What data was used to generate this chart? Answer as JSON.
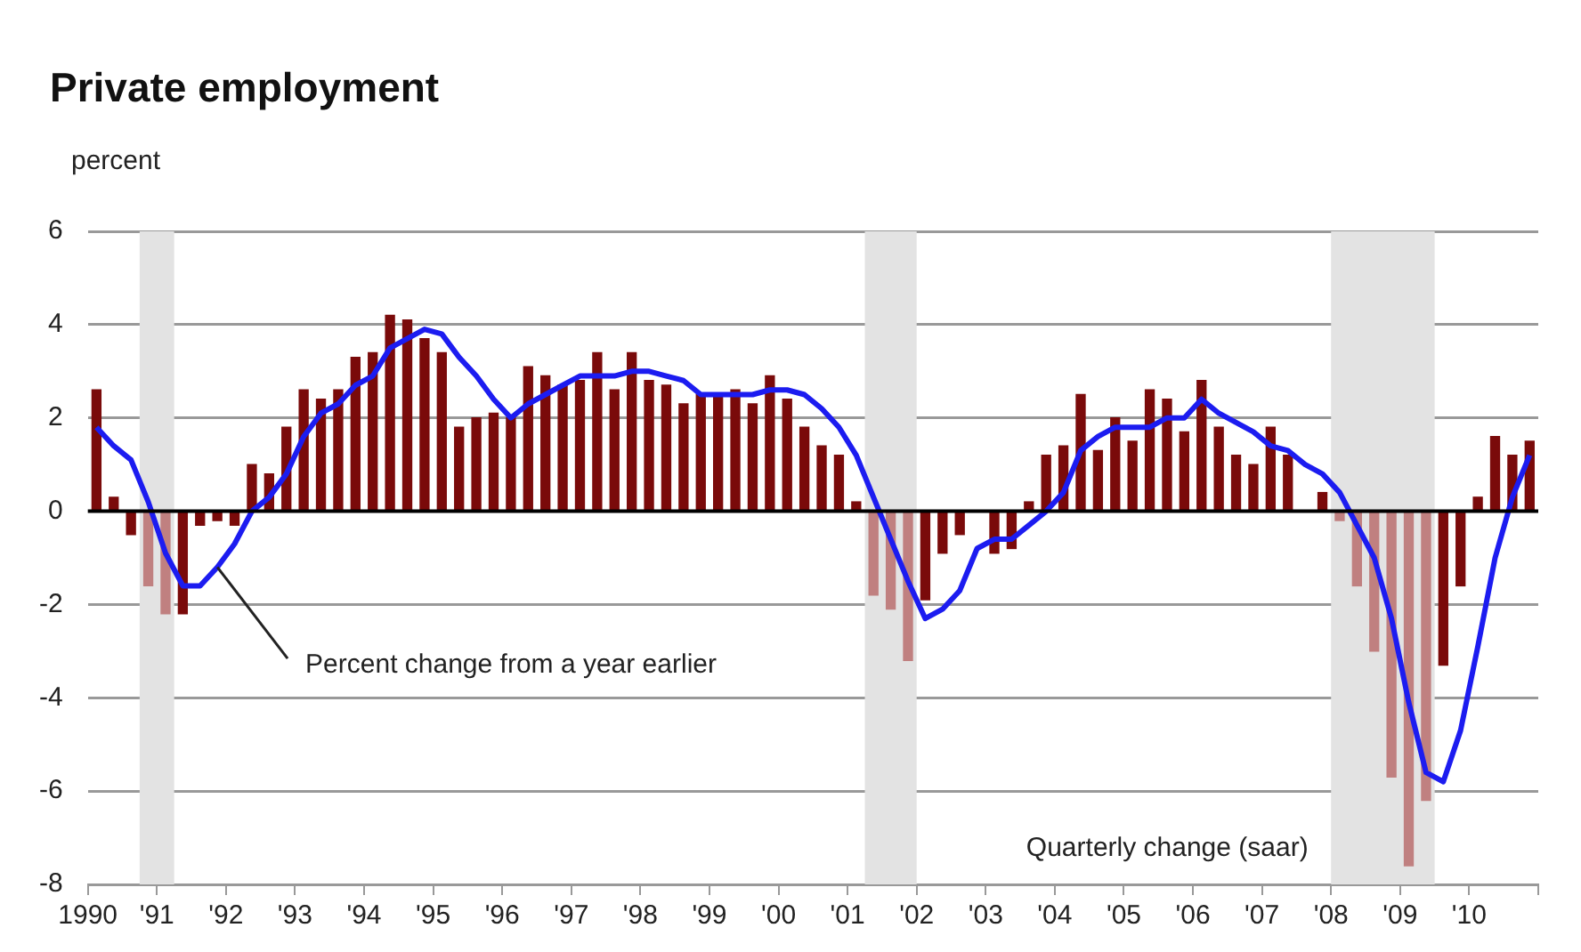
{
  "chart_data": {
    "type": "bar",
    "title": "Private employment",
    "ylabel": "percent",
    "x": [
      1990.125,
      1990.375,
      1990.625,
      1990.875,
      1991.125,
      1991.375,
      1991.625,
      1991.875,
      1992.125,
      1992.375,
      1992.625,
      1992.875,
      1993.125,
      1993.375,
      1993.625,
      1993.875,
      1994.125,
      1994.375,
      1994.625,
      1994.875,
      1995.125,
      1995.375,
      1995.625,
      1995.875,
      1996.125,
      1996.375,
      1996.625,
      1996.875,
      1997.125,
      1997.375,
      1997.625,
      1997.875,
      1998.125,
      1998.375,
      1998.625,
      1998.875,
      1999.125,
      1999.375,
      1999.625,
      1999.875,
      2000.125,
      2000.375,
      2000.625,
      2000.875,
      2001.125,
      2001.375,
      2001.625,
      2001.875,
      2002.125,
      2002.375,
      2002.625,
      2002.875,
      2003.125,
      2003.375,
      2003.625,
      2003.875,
      2004.125,
      2004.375,
      2004.625,
      2004.875,
      2005.125,
      2005.375,
      2005.625,
      2005.875,
      2006.125,
      2006.375,
      2006.625,
      2006.875,
      2007.125,
      2007.375,
      2007.625,
      2007.875,
      2008.125,
      2008.375,
      2008.625,
      2008.875,
      2009.125,
      2009.375,
      2009.625,
      2009.875,
      2010.125,
      2010.375,
      2010.625,
      2010.875
    ],
    "series": [
      {
        "colors": [
          "#7a0a0a",
          "#7a0a0a",
          "#7a0a0a",
          "#c08080",
          "#c08080",
          "#7a0a0a",
          "#7a0a0a",
          "#7a0a0a",
          "#7a0a0a",
          "#7a0a0a",
          "#7a0a0a",
          "#7a0a0a",
          "#7a0a0a",
          "#7a0a0a",
          "#7a0a0a",
          "#7a0a0a",
          "#7a0a0a",
          "#7a0a0a",
          "#7a0a0a",
          "#7a0a0a",
          "#7a0a0a",
          "#7a0a0a",
          "#7a0a0a",
          "#7a0a0a",
          "#7a0a0a",
          "#7a0a0a",
          "#7a0a0a",
          "#7a0a0a",
          "#7a0a0a",
          "#7a0a0a",
          "#7a0a0a",
          "#7a0a0a",
          "#7a0a0a",
          "#7a0a0a",
          "#7a0a0a",
          "#7a0a0a",
          "#7a0a0a",
          "#7a0a0a",
          "#7a0a0a",
          "#7a0a0a",
          "#7a0a0a",
          "#7a0a0a",
          "#7a0a0a",
          "#7a0a0a",
          "#7a0a0a",
          "#c08080",
          "#c08080",
          "#c08080",
          "#7a0a0a",
          "#7a0a0a",
          "#7a0a0a",
          "#7a0a0a",
          "#7a0a0a",
          "#7a0a0a",
          "#7a0a0a",
          "#7a0a0a",
          "#7a0a0a",
          "#7a0a0a",
          "#7a0a0a",
          "#7a0a0a",
          "#7a0a0a",
          "#7a0a0a",
          "#7a0a0a",
          "#7a0a0a",
          "#7a0a0a",
          "#7a0a0a",
          "#7a0a0a",
          "#7a0a0a",
          "#7a0a0a",
          "#7a0a0a",
          "#7a0a0a",
          "#7a0a0a",
          "#c08080",
          "#c08080",
          "#c08080",
          "#c08080",
          "#c08080",
          "#c08080",
          "#7a0a0a",
          "#7a0a0a",
          "#7a0a0a",
          "#7a0a0a",
          "#7a0a0a",
          "#7a0a0a"
        ],
        "values": [
          2.6,
          0.3,
          -0.5,
          -1.6,
          -2.2,
          -2.2,
          -0.3,
          -0.2,
          -0.3,
          1.0,
          0.8,
          1.8,
          2.6,
          2.4,
          2.6,
          3.3,
          3.4,
          4.2,
          4.1,
          3.7,
          3.4,
          1.8,
          2.0,
          2.1,
          2.0,
          3.1,
          2.9,
          2.7,
          2.8,
          3.4,
          2.6,
          3.4,
          2.8,
          2.7,
          2.3,
          2.5,
          2.5,
          2.6,
          2.3,
          2.9,
          2.4,
          1.8,
          1.4,
          1.2,
          0.2,
          -1.8,
          -2.1,
          -3.2,
          -1.9,
          -0.9,
          -0.5,
          0,
          -0.9,
          -0.8,
          0.2,
          1.2,
          1.4,
          2.5,
          1.3,
          2.0,
          1.5,
          2.6,
          2.4,
          1.7,
          2.8,
          1.8,
          1.2,
          1.0,
          1.8,
          1.2,
          0,
          0.4,
          -0.2,
          -1.6,
          -3.0,
          -5.7,
          -7.6,
          -6.2,
          -3.3,
          -1.6,
          0.3,
          1.6,
          1.2,
          1.5
        ]
      },
      {
        "type": "line",
        "color": "#1c1cf0",
        "values": [
          1.8,
          1.4,
          1.1,
          0.2,
          -0.9,
          -1.6,
          -1.6,
          -1.2,
          -0.7,
          0.0,
          0.3,
          0.8,
          1.6,
          2.1,
          2.3,
          2.7,
          2.9,
          3.5,
          3.7,
          3.9,
          3.8,
          3.3,
          2.9,
          2.4,
          2.0,
          2.3,
          2.5,
          2.7,
          2.9,
          2.9,
          2.9,
          3.0,
          3.0,
          2.9,
          2.8,
          2.5,
          2.5,
          2.5,
          2.5,
          2.6,
          2.6,
          2.5,
          2.2,
          1.8,
          1.2,
          0.3,
          -0.6,
          -1.5,
          -2.3,
          -2.1,
          -1.7,
          -0.8,
          -0.6,
          -0.6,
          -0.3,
          0.0,
          0.4,
          1.3,
          1.6,
          1.8,
          1.8,
          1.8,
          2.0,
          2.0,
          2.4,
          2.1,
          1.9,
          1.7,
          1.4,
          1.3,
          1.0,
          0.8,
          0.4,
          -0.3,
          -1.0,
          -2.3,
          -4.1,
          -5.6,
          -5.8,
          -4.7,
          -2.9,
          -1.0,
          0.3,
          1.2
        ]
      }
    ],
    "xlim": [
      1990,
      2011
    ],
    "xticks": [
      {
        "value": 1990,
        "label": "1990"
      },
      {
        "value": 1991,
        "label": "'91"
      },
      {
        "value": 1992,
        "label": "'92"
      },
      {
        "value": 1993,
        "label": "'93"
      },
      {
        "value": 1994,
        "label": "'94"
      },
      {
        "value": 1995,
        "label": "'95"
      },
      {
        "value": 1996,
        "label": "'96"
      },
      {
        "value": 1997,
        "label": "'97"
      },
      {
        "value": 1998,
        "label": "'98"
      },
      {
        "value": 1999,
        "label": "'99"
      },
      {
        "value": 2000,
        "label": "'00"
      },
      {
        "value": 2001,
        "label": "'01"
      },
      {
        "value": 2002,
        "label": "'02"
      },
      {
        "value": 2003,
        "label": "'03"
      },
      {
        "value": 2004,
        "label": "'04"
      },
      {
        "value": 2005,
        "label": "'05"
      },
      {
        "value": 2006,
        "label": "'06"
      },
      {
        "value": 2007,
        "label": "'07"
      },
      {
        "value": 2008,
        "label": "'08"
      },
      {
        "value": 2009,
        "label": "'09"
      },
      {
        "value": 2010,
        "label": "'10"
      },
      {
        "value": 2011,
        "label": null
      }
    ],
    "ylim": [
      -8,
      6
    ],
    "yticks": [
      -8,
      -6,
      -4,
      -2,
      0,
      2,
      4,
      6
    ],
    "bands": [
      {
        "axis": "x",
        "from": 1990.75,
        "to": 1991.25,
        "color": "#e3e3e3"
      },
      {
        "axis": "x",
        "from": 2001.25,
        "to": 2002.0,
        "color": "#e3e3e3"
      },
      {
        "axis": "x",
        "from": 2008.0,
        "to": 2009.5,
        "color": "#e3e3e3"
      }
    ],
    "ref_lines": [
      {
        "axis": "y",
        "value": 0,
        "color": "#000000"
      }
    ],
    "annotations": [
      {
        "text": "Percent change from a year earlier",
        "x": 1991.875,
        "y": -1.2
      },
      "Quarterly change (saar)"
    ],
    "grid": "y",
    "legend": false,
    "marker": "none"
  }
}
